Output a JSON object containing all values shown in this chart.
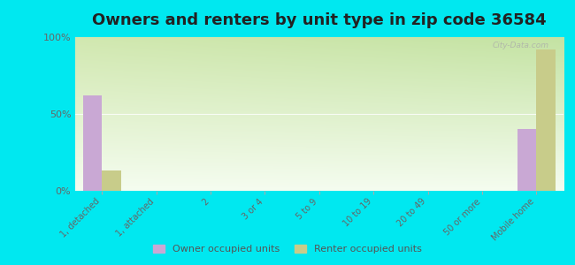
{
  "title": "Owners and renters by unit type in zip code 36584",
  "categories": [
    "1, detached",
    "1, attached",
    "2",
    "3 or 4",
    "5 to 9",
    "10 to 19",
    "20 to 49",
    "50 or more",
    "Mobile home"
  ],
  "owner_values": [
    62,
    0,
    0,
    0,
    0,
    0,
    0,
    0,
    40
  ],
  "renter_values": [
    13,
    0,
    0,
    0,
    0,
    0,
    0,
    0,
    92
  ],
  "owner_color": "#c9a8d4",
  "renter_color": "#c8cc8a",
  "bg_outer": "#00e8f0",
  "yticks": [
    0,
    50,
    100
  ],
  "ylim": [
    0,
    100
  ],
  "title_fontsize": 13,
  "legend_labels": [
    "Owner occupied units",
    "Renter occupied units"
  ],
  "watermark": "City-Data.com",
  "grad_top_left": "#d6edbe",
  "grad_top_right": "#e8f5d0",
  "grad_bottom": "#f8fdf2",
  "hline_color": "#e0e8d0"
}
